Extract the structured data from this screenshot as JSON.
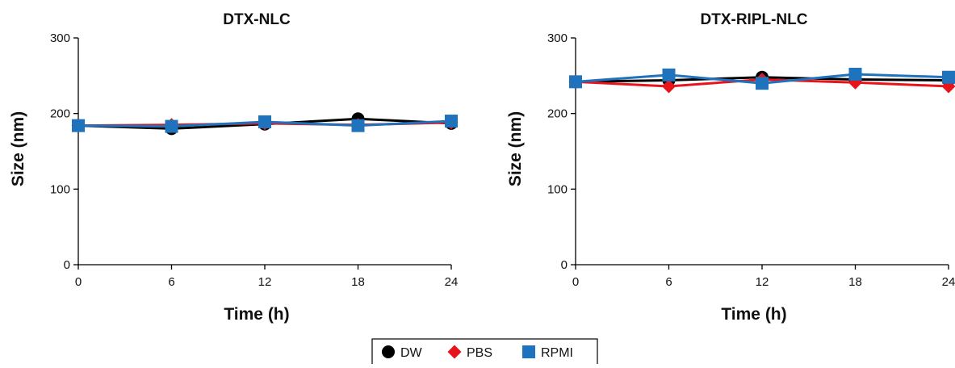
{
  "chart_data": [
    {
      "type": "line",
      "title": "DTX-NLC",
      "xlabel": "Time (h)",
      "ylabel": "Size (nm)",
      "x": [
        0,
        6,
        12,
        18,
        24
      ],
      "xticks": [
        "0",
        "6",
        "12",
        "18",
        "24"
      ],
      "yticks": [
        "0",
        "100",
        "200",
        "300"
      ],
      "xlim": [
        0,
        24
      ],
      "ylim": [
        0,
        300
      ],
      "series": [
        {
          "name": "DW",
          "values": [
            184,
            180,
            186,
            193,
            187
          ],
          "color": "#000000",
          "marker": "circle"
        },
        {
          "name": "PBS",
          "values": [
            184,
            185,
            187,
            185,
            188
          ],
          "color": "#e8141c",
          "marker": "diamond"
        },
        {
          "name": "RPMI",
          "values": [
            184,
            183,
            189,
            184,
            190
          ],
          "color": "#1f73bd",
          "marker": "square"
        }
      ]
    },
    {
      "type": "line",
      "title": "DTX-RIPL-NLC",
      "xlabel": "Time (h)",
      "ylabel": "Size (nm)",
      "x": [
        0,
        6,
        12,
        18,
        24
      ],
      "xticks": [
        "0",
        "6",
        "12",
        "18",
        "24"
      ],
      "yticks": [
        "0",
        "100",
        "200",
        "300"
      ],
      "xlim": [
        0,
        24
      ],
      "ylim": [
        0,
        300
      ],
      "series": [
        {
          "name": "DW",
          "values": [
            242,
            244,
            248,
            245,
            244
          ],
          "color": "#000000",
          "marker": "circle"
        },
        {
          "name": "PBS",
          "values": [
            242,
            236,
            245,
            241,
            236
          ],
          "color": "#e8141c",
          "marker": "diamond"
        },
        {
          "name": "RPMI",
          "values": [
            242,
            251,
            240,
            252,
            248
          ],
          "color": "#1f73bd",
          "marker": "square"
        }
      ]
    }
  ],
  "legend": {
    "position": "bottom-center",
    "items": [
      {
        "label": "DW",
        "color": "#000000",
        "marker": "circle"
      },
      {
        "label": "PBS",
        "color": "#e8141c",
        "marker": "diamond"
      },
      {
        "label": "RPMI",
        "color": "#1f73bd",
        "marker": "square"
      }
    ]
  }
}
